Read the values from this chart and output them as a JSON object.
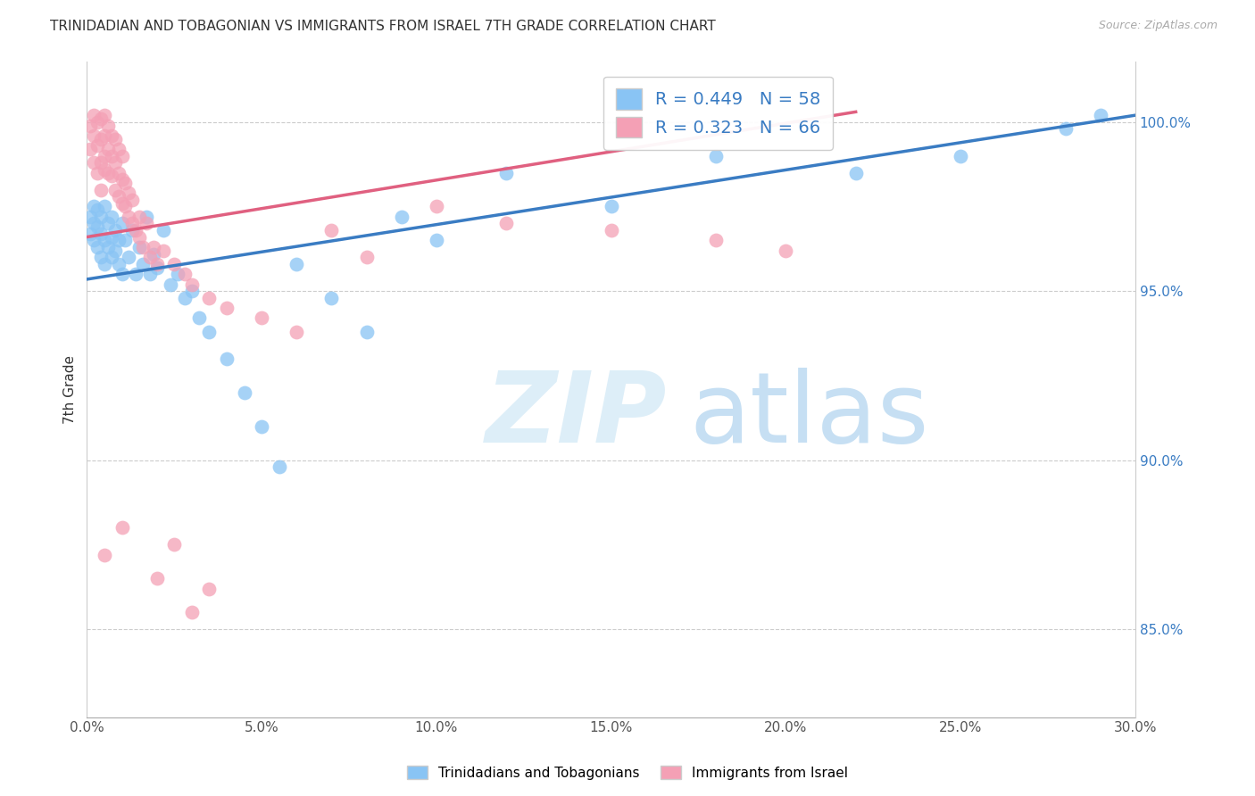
{
  "title": "TRINIDADIAN AND TOBAGONIAN VS IMMIGRANTS FROM ISRAEL 7TH GRADE CORRELATION CHART",
  "source": "Source: ZipAtlas.com",
  "ylabel": "7th Grade",
  "ytick_labels": [
    "85.0%",
    "90.0%",
    "95.0%",
    "100.0%"
  ],
  "ytick_values": [
    0.85,
    0.9,
    0.95,
    1.0
  ],
  "xmin": 0.0,
  "xmax": 0.3,
  "ymin": 0.824,
  "ymax": 1.018,
  "blue_R": 0.449,
  "blue_N": 58,
  "pink_R": 0.323,
  "pink_N": 66,
  "blue_label": "Trinidadians and Tobagonians",
  "pink_label": "Immigrants from Israel",
  "blue_color": "#89C4F4",
  "pink_color": "#F4A0B5",
  "blue_line_color": "#3A7CC3",
  "pink_line_color": "#E06080",
  "legend_text_color": "#3A7CC3",
  "blue_scatter_x": [
    0.001,
    0.001,
    0.002,
    0.002,
    0.002,
    0.003,
    0.003,
    0.003,
    0.004,
    0.004,
    0.004,
    0.005,
    0.005,
    0.005,
    0.006,
    0.006,
    0.007,
    0.007,
    0.007,
    0.008,
    0.008,
    0.009,
    0.009,
    0.01,
    0.01,
    0.011,
    0.012,
    0.013,
    0.014,
    0.015,
    0.016,
    0.017,
    0.018,
    0.019,
    0.02,
    0.022,
    0.024,
    0.026,
    0.028,
    0.03,
    0.032,
    0.035,
    0.04,
    0.045,
    0.05,
    0.055,
    0.06,
    0.07,
    0.08,
    0.09,
    0.1,
    0.12,
    0.15,
    0.18,
    0.22,
    0.25,
    0.28,
    0.29
  ],
  "blue_scatter_y": [
    0.967,
    0.972,
    0.97,
    0.975,
    0.965,
    0.974,
    0.969,
    0.963,
    0.972,
    0.967,
    0.96,
    0.975,
    0.965,
    0.958,
    0.97,
    0.963,
    0.972,
    0.966,
    0.96,
    0.968,
    0.962,
    0.965,
    0.958,
    0.97,
    0.955,
    0.965,
    0.96,
    0.968,
    0.955,
    0.963,
    0.958,
    0.972,
    0.955,
    0.961,
    0.957,
    0.968,
    0.952,
    0.955,
    0.948,
    0.95,
    0.942,
    0.938,
    0.93,
    0.92,
    0.91,
    0.898,
    0.958,
    0.948,
    0.938,
    0.972,
    0.965,
    0.985,
    0.975,
    0.99,
    0.985,
    0.99,
    0.998,
    1.002
  ],
  "pink_scatter_x": [
    0.001,
    0.001,
    0.002,
    0.002,
    0.002,
    0.003,
    0.003,
    0.003,
    0.004,
    0.004,
    0.004,
    0.004,
    0.005,
    0.005,
    0.005,
    0.005,
    0.006,
    0.006,
    0.006,
    0.007,
    0.007,
    0.007,
    0.008,
    0.008,
    0.008,
    0.009,
    0.009,
    0.009,
    0.01,
    0.01,
    0.01,
    0.011,
    0.011,
    0.012,
    0.012,
    0.013,
    0.013,
    0.014,
    0.015,
    0.015,
    0.016,
    0.017,
    0.018,
    0.019,
    0.02,
    0.022,
    0.025,
    0.028,
    0.03,
    0.035,
    0.04,
    0.05,
    0.06,
    0.07,
    0.08,
    0.1,
    0.12,
    0.15,
    0.18,
    0.2,
    0.005,
    0.01,
    0.02,
    0.03,
    0.025,
    0.035
  ],
  "pink_scatter_y": [
    0.992,
    0.999,
    0.988,
    0.996,
    1.002,
    0.985,
    0.993,
    1.0,
    0.988,
    0.995,
    1.001,
    0.98,
    0.99,
    0.996,
    0.986,
    1.002,
    0.985,
    0.992,
    0.999,
    0.984,
    0.99,
    0.996,
    0.98,
    0.988,
    0.995,
    0.978,
    0.985,
    0.992,
    0.976,
    0.983,
    0.99,
    0.975,
    0.982,
    0.972,
    0.979,
    0.97,
    0.977,
    0.968,
    0.972,
    0.966,
    0.963,
    0.97,
    0.96,
    0.963,
    0.958,
    0.962,
    0.958,
    0.955,
    0.952,
    0.948,
    0.945,
    0.942,
    0.938,
    0.968,
    0.96,
    0.975,
    0.97,
    0.968,
    0.965,
    0.962,
    0.872,
    0.88,
    0.865,
    0.855,
    0.875,
    0.862
  ],
  "blue_trend_x0": 0.0,
  "blue_trend_x1": 0.3,
  "blue_trend_y0": 0.9535,
  "blue_trend_y1": 1.002,
  "pink_trend_x0": 0.0,
  "pink_trend_x1": 0.22,
  "pink_trend_y0": 0.966,
  "pink_trend_y1": 1.003
}
